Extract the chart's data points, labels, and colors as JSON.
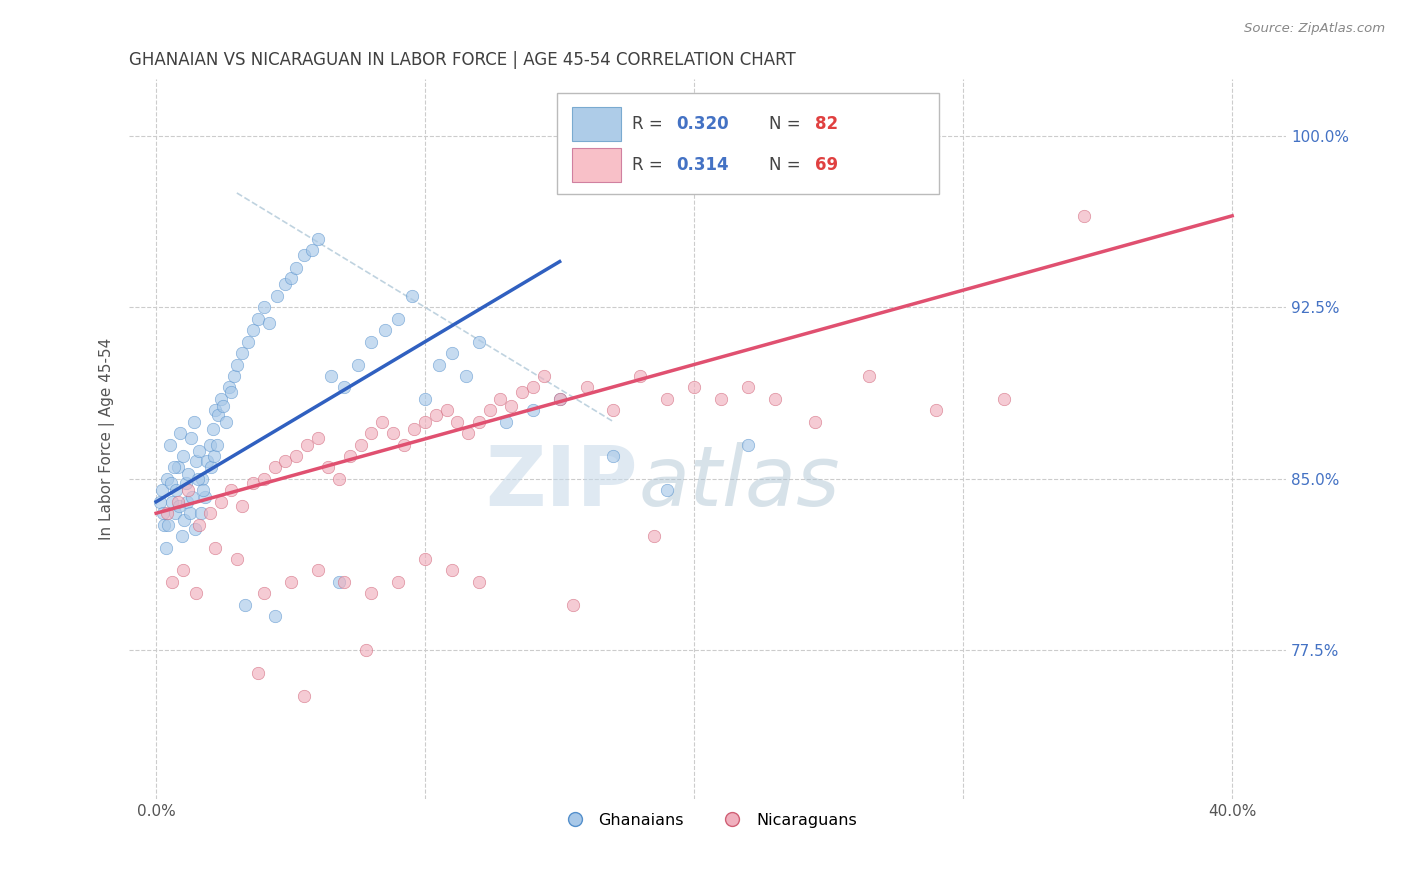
{
  "title": "GHANAIAN VS NICARAGUAN IN LABOR FORCE | AGE 45-54 CORRELATION CHART",
  "source_text": "Source: ZipAtlas.com",
  "ylabel": "In Labor Force | Age 45-54",
  "xlim": [
    -1.0,
    42.0
  ],
  "ylim": [
    71.0,
    102.5
  ],
  "x_ticks": [
    0.0,
    40.0
  ],
  "x_tick_labels": [
    "0.0%",
    "40.0%"
  ],
  "y_ticks": [
    77.5,
    85.0,
    92.5,
    100.0
  ],
  "y_tick_labels": [
    "77.5%",
    "85.0%",
    "92.5%",
    "100.0%"
  ],
  "legend_labels": [
    "Ghanaians",
    "Nicaraguans"
  ],
  "R_ghana": 0.32,
  "N_ghana": 82,
  "R_nicaragua": 0.314,
  "N_nicaragua": 69,
  "blue_dot_color": "#a8c8e8",
  "pink_dot_color": "#f0b0be",
  "trend_blue": "#3060c0",
  "trend_pink": "#e05070",
  "ref_line_color": "#b0c8d8",
  "watermark_zip": "ZIP",
  "watermark_atlas": "atlas",
  "watermark_color_zip": "#c8d8e8",
  "watermark_color_atlas": "#a0bccc",
  "title_color": "#404040",
  "source_color": "#888888",
  "ytick_color": "#4472c4",
  "xtick_color": "#555555",
  "grid_color": "#cccccc",
  "legend_box_color": "#dddddd",
  "legend_blue_fill": "#aecce8",
  "legend_pink_fill": "#f8c0c8",
  "legend_r_color": "#444444",
  "legend_val_color": "#4472c4",
  "legend_n_val_color": "#e04040"
}
